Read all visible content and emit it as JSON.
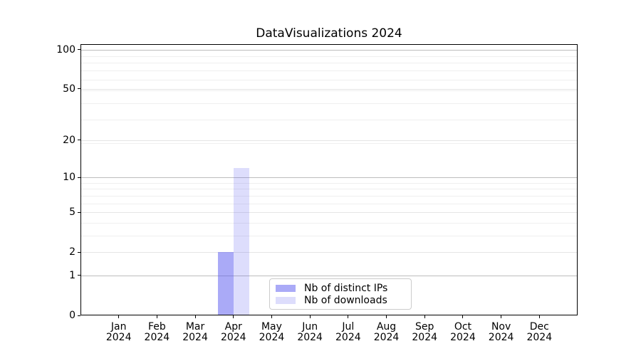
{
  "chart_data": {
    "type": "bar",
    "title": "DataVisualizations 2024",
    "x": {
      "months": [
        "Jan",
        "Feb",
        "Mar",
        "Apr",
        "May",
        "Jun",
        "Jul",
        "Aug",
        "Sep",
        "Oct",
        "Nov",
        "Dec"
      ],
      "year": "2024"
    },
    "series": [
      {
        "name": "Nb of distinct IPs",
        "color": "#5555F0",
        "alpha": 0.5,
        "values": [
          0,
          0,
          0,
          2,
          0,
          0,
          0,
          0,
          0,
          0,
          0,
          0
        ]
      },
      {
        "name": "Nb of downloads",
        "color": "#5555F0",
        "alpha": 0.2,
        "values": [
          0,
          0,
          0,
          12,
          0,
          0,
          0,
          0,
          0,
          0,
          0,
          0
        ]
      }
    ],
    "yaxis": {
      "scale": "log1p",
      "ylim": [
        0,
        110
      ],
      "ticks": [
        0,
        1,
        2,
        5,
        10,
        20,
        50,
        100
      ],
      "strong_gridlines": [
        1,
        10,
        100
      ],
      "light_gridlines": [
        2,
        5,
        20,
        50
      ],
      "minor_gridlines": [
        3,
        4,
        6,
        7,
        8,
        9,
        19,
        29,
        39,
        49,
        59,
        69,
        79,
        89
      ]
    },
    "grid": true,
    "legend_position": "lower center",
    "colors": {
      "axis": "#000000",
      "strong_grid": "#bdbdbd",
      "light_grid": "#e5e5e5",
      "minor_grid": "#efefef",
      "legend_border": "#cccccc"
    }
  }
}
